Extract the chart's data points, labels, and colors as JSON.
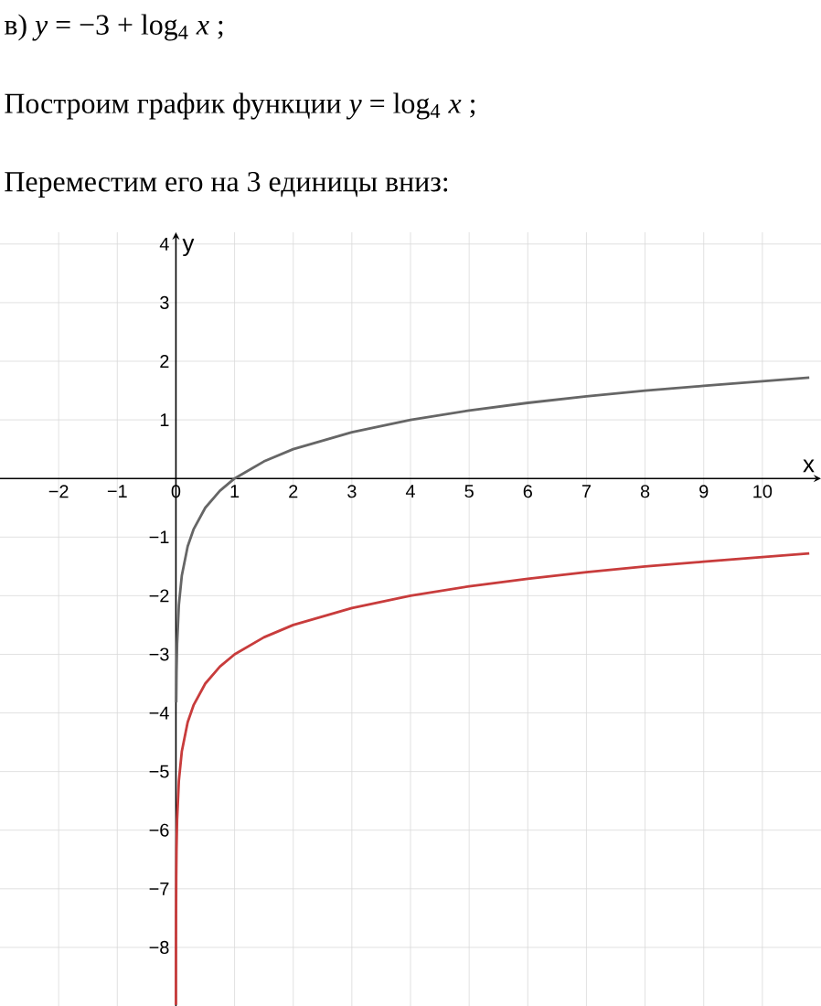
{
  "chart_data": {
    "type": "line",
    "title": "в) *y* = −3 + log$_{4}$ *x* ;",
    "subtitle": "Построим график функции *y* = log$_{4}$ *x* ;",
    "annotations": [
      "Переместим его на 3 единицы вниз:"
    ],
    "xlabel": "x",
    "ylabel": "y",
    "xlim": [
      -3,
      11
    ],
    "ylim": [
      -9,
      4.2
    ],
    "xticks": [
      {
        "value": -2,
        "label": "−2"
      },
      {
        "value": -1,
        "label": "−1"
      },
      0,
      1,
      2,
      3,
      4,
      5,
      6,
      7,
      8,
      9,
      10
    ],
    "yticks": [
      {
        "value": -8,
        "label": "−8"
      },
      {
        "value": -7,
        "label": "−7"
      },
      {
        "value": -6,
        "label": "−6"
      },
      {
        "value": -5,
        "label": "−5"
      },
      {
        "value": -4,
        "label": "−4"
      },
      {
        "value": -3,
        "label": "−3"
      },
      {
        "value": -2,
        "label": "−2"
      },
      {
        "value": -1,
        "label": "−1"
      },
      1,
      2,
      3,
      4
    ],
    "grid": true,
    "marker": "none",
    "line_style": "solid",
    "series": [
      {
        "color": "#666666",
        "x": [
          0.005,
          0.01,
          0.02,
          0.05,
          0.1,
          0.2,
          0.3,
          0.5,
          0.75,
          1,
          1.5,
          2,
          3,
          4,
          5,
          6,
          7,
          8,
          9,
          10,
          10.8
        ],
        "values": [
          -3.82,
          -3.32,
          -2.82,
          -2.16,
          -1.66,
          -1.16,
          -0.87,
          -0.5,
          -0.21,
          0,
          0.29,
          0.5,
          0.79,
          1,
          1.16,
          1.29,
          1.4,
          1.5,
          1.58,
          1.66,
          1.72
        ]
      },
      {
        "color": "#c83c3c",
        "x": [
          0.00025,
          0.0005,
          0.001,
          0.002,
          0.005,
          0.01,
          0.02,
          0.05,
          0.1,
          0.2,
          0.3,
          0.5,
          0.75,
          1,
          1.5,
          2,
          3,
          4,
          5,
          6,
          7,
          8,
          9,
          10,
          10.8
        ],
        "values": [
          -8.98,
          -8.48,
          -7.98,
          -7.48,
          -6.82,
          -6.32,
          -5.82,
          -5.16,
          -4.66,
          -4.16,
          -3.87,
          -3.5,
          -3.21,
          -3,
          -2.71,
          -2.5,
          -2.21,
          -2,
          -1.84,
          -1.71,
          -1.6,
          -1.5,
          -1.42,
          -1.34,
          -1.28
        ]
      }
    ]
  }
}
